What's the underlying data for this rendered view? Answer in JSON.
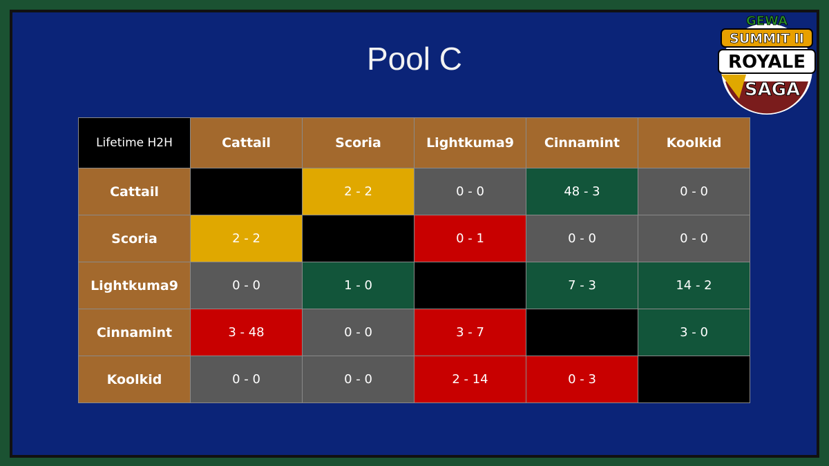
{
  "title": "Pool C",
  "logo": {
    "line1": "GEWA",
    "line2": "SUMMIT II",
    "line3": "ROYALE",
    "line4": "SAGA"
  },
  "table": {
    "corner": "Lifetime H2H",
    "columns": [
      "Cattail",
      "Scoria",
      "Lightkuma9",
      "Cinnamint",
      "Koolkid"
    ],
    "rows": [
      {
        "name": "Cattail",
        "cells": [
          {
            "color": "black"
          },
          {
            "text": "2 - 2",
            "color": "gold"
          },
          {
            "text": "0 - 0",
            "color": "gray"
          },
          {
            "text": "48 - 3",
            "color": "green"
          },
          {
            "text": "0 - 0",
            "color": "gray"
          }
        ]
      },
      {
        "name": "Scoria",
        "cells": [
          {
            "text": "2 - 2",
            "color": "gold"
          },
          {
            "color": "black"
          },
          {
            "text": "0 - 1",
            "color": "red"
          },
          {
            "text": "0 - 0",
            "color": "gray"
          },
          {
            "text": "0 - 0",
            "color": "gray"
          }
        ]
      },
      {
        "name": "Lightkuma9",
        "cells": [
          {
            "text": "0 - 0",
            "color": "gray"
          },
          {
            "text": "1 - 0",
            "color": "green"
          },
          {
            "color": "black"
          },
          {
            "text": "7 - 3",
            "color": "green"
          },
          {
            "text": "14 - 2",
            "color": "green"
          }
        ]
      },
      {
        "name": "Cinnamint",
        "cells": [
          {
            "text": "3 - 48",
            "color": "red"
          },
          {
            "text": "0 - 0",
            "color": "gray"
          },
          {
            "text": "3 - 7",
            "color": "red"
          },
          {
            "color": "black"
          },
          {
            "text": "3 - 0",
            "color": "green"
          }
        ]
      },
      {
        "name": "Koolkid",
        "cells": [
          {
            "text": "0 - 0",
            "color": "gray"
          },
          {
            "text": "0 - 0",
            "color": "gray"
          },
          {
            "text": "2 - 14",
            "color": "red"
          },
          {
            "text": "0 - 3",
            "color": "red"
          },
          {
            "color": "black"
          }
        ]
      }
    ]
  }
}
